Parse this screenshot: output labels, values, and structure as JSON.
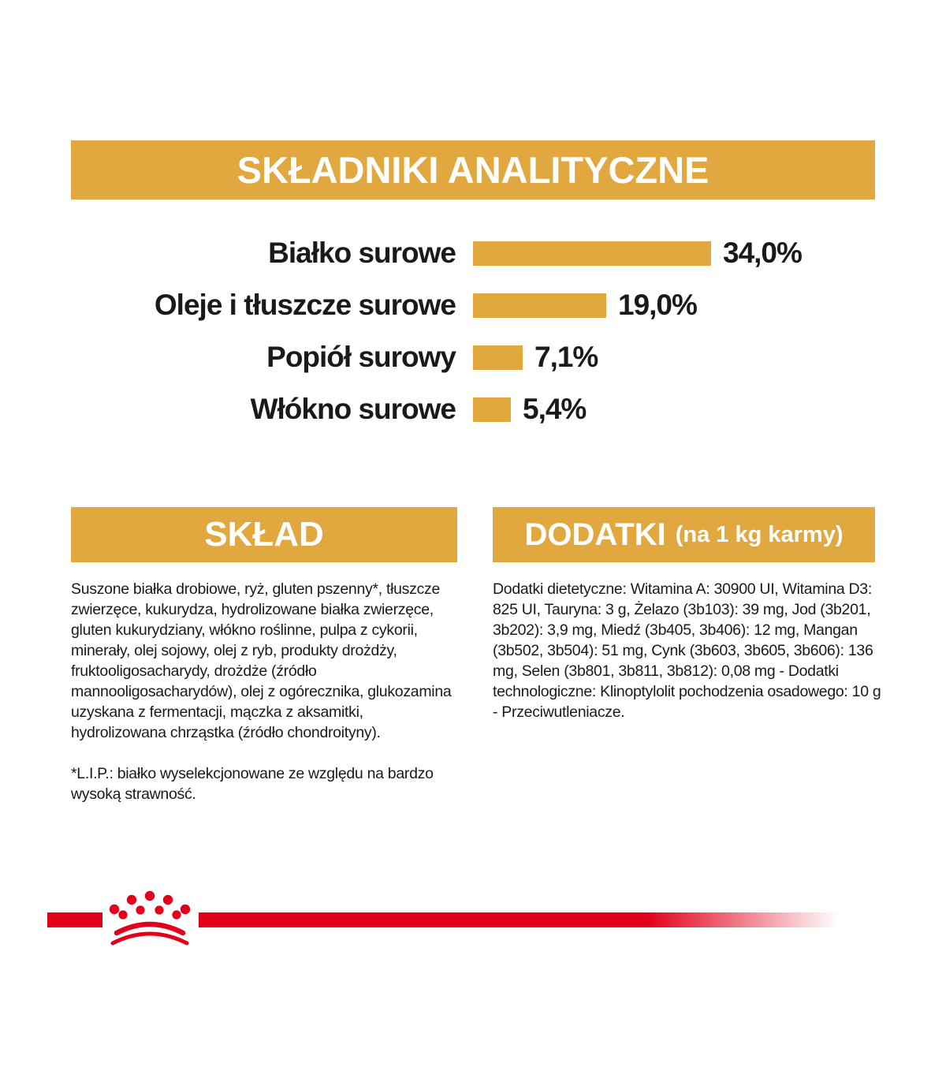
{
  "colors": {
    "gold": "#e0a83f",
    "brand_red": "#e2001a",
    "text": "#1a1a1a",
    "header_text": "#ffffff"
  },
  "analytics": {
    "title": "SKŁADNIKI ANALITYCZNE"
  },
  "chart_data": {
    "type": "bar",
    "orientation": "horizontal",
    "title": "SKŁADNIKI ANALITYCZNE",
    "categories": [
      "Białko surowe",
      "Oleje i tłuszcze surowe",
      "Popiół surowy",
      "Włókno surowe"
    ],
    "values": [
      34.0,
      19.0,
      7.1,
      5.4
    ],
    "value_labels": [
      "34,0%",
      "19,0%",
      "7,1%",
      "5,4%"
    ],
    "unit": "%",
    "xlim": [
      0,
      34
    ],
    "bar_color": "#e0a83f",
    "grid": false,
    "legend": false
  },
  "sklad": {
    "title": "SKŁAD",
    "ingredients": "Suszone białka drobiowe, ryż, gluten pszenny*, tłuszcze zwierzęce, kukurydza, hydrolizowane białka zwierzęce, gluten kukurydziany, włókno roślinne, pulpa z cykorii, minerały, olej sojowy, olej z ryb, produkty drożdży, fruktooligosacharydy, drożdże (źródło mannooligosacharydów), olej z ogórecznika, glukozamina uzyskana z fermentacji, mączka z aksamitki, hydrolizowana chrząstka (źródło chondroityny).",
    "footnote": "*L.I.P.: białko wyselekcjonowane ze względu na bardzo wysoką strawność."
  },
  "dodatki": {
    "title": "DODATKI",
    "subtitle": "(na 1 kg karmy)",
    "text": "Dodatki dietetyczne: Witamina A: 30900 UI, Witamina D3: 825 UI, Tauryna: 3 g, Żelazo (3b103): 39 mg, Jod (3b201, 3b202): 3,9 mg, Miedź (3b405, 3b406): 12 mg, Mangan (3b502, 3b504): 51 mg, Cynk (3b603, 3b605, 3b606): 136 mg, Selen (3b801, 3b811, 3b812): 0,08 mg - Dodatki technologiczne: Klinoptylolit pochodzenia osadowego: 10 g - Przeciwutleniacze."
  },
  "footer": {
    "brand": "Royal Canin crown logo"
  }
}
